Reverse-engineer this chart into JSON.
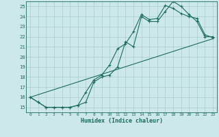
{
  "xlabel": "Humidex (Indice chaleur)",
  "bg_color": "#cce8e8",
  "grid_color": "#aacccc",
  "line_color": "#1a6b5a",
  "xlim": [
    -0.5,
    23.5
  ],
  "ylim": [
    14.5,
    25.5
  ],
  "yticks": [
    15,
    16,
    17,
    18,
    19,
    20,
    21,
    22,
    23,
    24,
    25
  ],
  "xticks": [
    0,
    1,
    2,
    3,
    4,
    5,
    6,
    7,
    8,
    9,
    10,
    11,
    12,
    13,
    14,
    15,
    16,
    17,
    18,
    19,
    20,
    21,
    22,
    23
  ],
  "series1_x": [
    0,
    1,
    2,
    3,
    4,
    5,
    6,
    7,
    8,
    9,
    10,
    11,
    12,
    13,
    14,
    15,
    16,
    17,
    18,
    19,
    20,
    21,
    22,
    23
  ],
  "series1_y": [
    16.0,
    15.5,
    15.0,
    15.0,
    15.0,
    15.0,
    15.2,
    15.5,
    17.5,
    18.0,
    18.2,
    19.0,
    21.5,
    21.0,
    24.0,
    23.5,
    23.5,
    24.5,
    25.5,
    25.0,
    24.2,
    23.5,
    22.0,
    22.0
  ],
  "series2_x": [
    0,
    1,
    2,
    3,
    4,
    5,
    6,
    7,
    8,
    9,
    10,
    11,
    12,
    13,
    14,
    15,
    16,
    17,
    18,
    19,
    20,
    21,
    22,
    23
  ],
  "series2_y": [
    16.0,
    15.5,
    15.0,
    15.0,
    15.0,
    15.0,
    15.2,
    16.5,
    17.7,
    18.2,
    19.2,
    20.8,
    21.3,
    22.5,
    24.2,
    23.7,
    23.8,
    25.1,
    24.8,
    24.3,
    24.0,
    23.8,
    22.2,
    21.9
  ],
  "series3_x": [
    0,
    23
  ],
  "series3_y": [
    16.0,
    21.8
  ]
}
